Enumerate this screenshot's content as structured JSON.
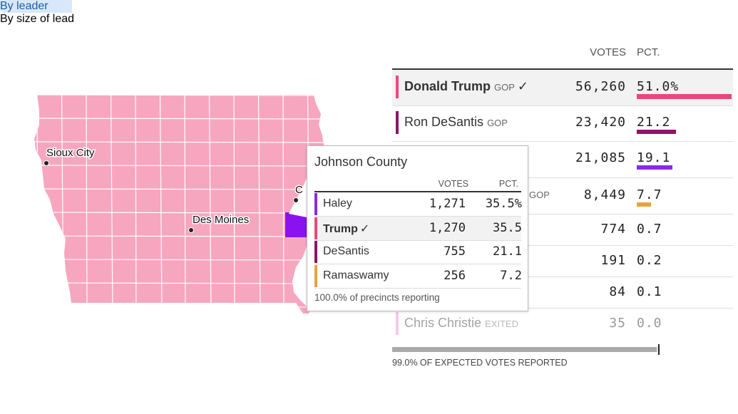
{
  "tabs": [
    {
      "label": "By leader",
      "selected": true
    },
    {
      "label": "By size of lead",
      "selected": false
    }
  ],
  "map": {
    "cities": [
      "Sioux City",
      "Des Moines",
      "C"
    ],
    "base_color": "#f7a6c0",
    "highlight_color": "#8b12f0"
  },
  "results": {
    "headers": [
      "VOTES",
      "PCT."
    ],
    "rows": [
      {
        "name": "Donald Trump",
        "party": "GOP",
        "check": "✓",
        "votes": "56,260",
        "pct": 51.0,
        "pct_label": "51.0%",
        "color": "#e9487d"
      },
      {
        "name": "Ron DeSantis",
        "party": "GOP",
        "votes": "23,420",
        "pct": 21.2,
        "pct_label": "21.2",
        "color": "#8e1468"
      },
      {
        "votes": "21,085",
        "pct": 19.1,
        "pct_label": "19.1",
        "color": "#8a2be2"
      },
      {
        "party": "GOP",
        "votes": "8,449",
        "pct": 7.7,
        "pct_label": "7.7",
        "color": "#e8a33d"
      },
      {
        "votes": "774",
        "pct_label": "0.7"
      },
      {
        "votes": "191",
        "pct_label": "0.2"
      },
      {
        "votes": "84",
        "pct_label": "0.1"
      },
      {
        "name": "Chris Christie",
        "party": "EXITED",
        "votes": "35",
        "pct_label": "0.0",
        "color": "#f6c8ea",
        "faded": true
      }
    ],
    "reported": {
      "pct": 99.0,
      "label": "99.0% OF EXPECTED VOTES REPORTED"
    }
  },
  "tooltip": {
    "title": "Johnson County",
    "headers": [
      "VOTES",
      "PCT."
    ],
    "rows": [
      {
        "name": "Haley",
        "votes": "1,271",
        "pct_label": "35.5%",
        "color": "#8a2be2"
      },
      {
        "name": "Trump",
        "check": "✓",
        "votes": "1,270",
        "pct_label": "35.5",
        "color": "#e9487d",
        "highlight": true
      },
      {
        "name": "DeSantis",
        "votes": "755",
        "pct_label": "21.1",
        "color": "#8e1468"
      },
      {
        "name": "Ramaswamy",
        "votes": "256",
        "pct_label": "7.2",
        "color": "#e8a33d"
      }
    ],
    "footer": "100.0% of precincts reporting"
  }
}
